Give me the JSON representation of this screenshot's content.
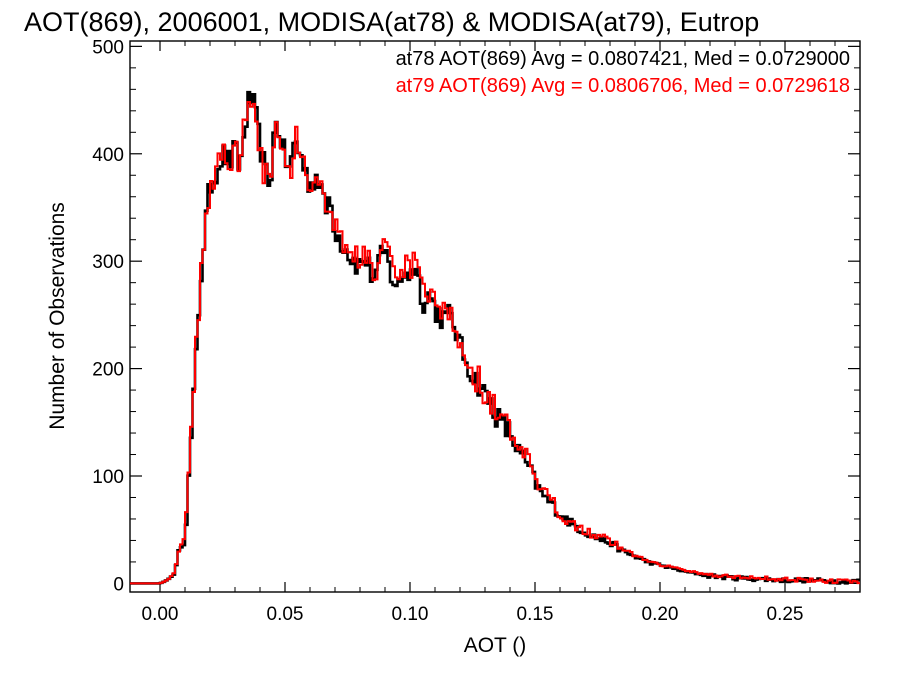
{
  "chart_data": {
    "type": "histogram",
    "title": "AOT(869), 2006001, MODISA(at78) & MODISA(at79), Eutrop",
    "xlabel": "AOT ()",
    "ylabel": "Number of Observations",
    "xlim": [
      -0.012,
      0.28
    ],
    "ylim": [
      -8,
      505
    ],
    "xticks": [
      0.0,
      0.05,
      0.1,
      0.15,
      0.2,
      0.25
    ],
    "xtick_labels": [
      "0.00",
      "0.05",
      "0.10",
      "0.15",
      "0.20",
      "0.25"
    ],
    "yticks": [
      0,
      100,
      200,
      300,
      400,
      500
    ],
    "ytick_labels": [
      "0",
      "100",
      "200",
      "300",
      "400",
      "500"
    ],
    "bin_width": 0.001,
    "grid": false,
    "legend_position": "top-right",
    "series": [
      {
        "name": "at78",
        "color": "#000000",
        "legend_text": "at78 AOT(869) Avg = 0.0807421, Med = 0.0729000",
        "x": [
          -0.005,
          0.0,
          0.002,
          0.004,
          0.006,
          0.008,
          0.01,
          0.012,
          0.014,
          0.016,
          0.018,
          0.02,
          0.022,
          0.024,
          0.026,
          0.028,
          0.03,
          0.032,
          0.034,
          0.036,
          0.038,
          0.04,
          0.042,
          0.044,
          0.046,
          0.048,
          0.05,
          0.052,
          0.054,
          0.056,
          0.058,
          0.06,
          0.062,
          0.064,
          0.066,
          0.068,
          0.07,
          0.072,
          0.074,
          0.076,
          0.078,
          0.08,
          0.082,
          0.084,
          0.086,
          0.088,
          0.09,
          0.092,
          0.094,
          0.096,
          0.098,
          0.1,
          0.102,
          0.104,
          0.106,
          0.108,
          0.11,
          0.112,
          0.114,
          0.116,
          0.118,
          0.12,
          0.122,
          0.124,
          0.126,
          0.128,
          0.13,
          0.132,
          0.134,
          0.136,
          0.138,
          0.14,
          0.142,
          0.144,
          0.146,
          0.148,
          0.15,
          0.152,
          0.154,
          0.156,
          0.158,
          0.16,
          0.165,
          0.17,
          0.175,
          0.18,
          0.185,
          0.19,
          0.195,
          0.2,
          0.205,
          0.21,
          0.215,
          0.22,
          0.225,
          0.23,
          0.24,
          0.25,
          0.26,
          0.27,
          0.278
        ],
        "y": [
          0,
          0,
          2,
          5,
          10,
          35,
          40,
          115,
          190,
          275,
          330,
          370,
          380,
          395,
          400,
          390,
          405,
          385,
          425,
          455,
          440,
          410,
          385,
          370,
          430,
          420,
          395,
          385,
          415,
          400,
          385,
          370,
          380,
          375,
          345,
          360,
          330,
          320,
          315,
          305,
          300,
          295,
          305,
          290,
          285,
          300,
          310,
          290,
          280,
          275,
          295,
          285,
          300,
          275,
          260,
          270,
          255,
          250,
          245,
          250,
          240,
          220,
          210,
          200,
          190,
          185,
          175,
          170,
          160,
          150,
          145,
          140,
          130,
          120,
          115,
          105,
          95,
          85,
          80,
          75,
          70,
          65,
          55,
          48,
          42,
          38,
          30,
          25,
          20,
          17,
          14,
          11,
          9,
          7,
          6,
          5,
          4,
          3,
          3,
          2,
          2
        ],
        "y_note_amplitude": 12
      },
      {
        "name": "at79",
        "color": "#ff0000",
        "legend_text": "at79 AOT(869) Avg = 0.0806706, Med = 0.0729618",
        "x": [
          -0.005,
          0.0,
          0.002,
          0.004,
          0.006,
          0.008,
          0.01,
          0.012,
          0.014,
          0.016,
          0.018,
          0.02,
          0.022,
          0.024,
          0.026,
          0.028,
          0.03,
          0.032,
          0.034,
          0.036,
          0.038,
          0.04,
          0.042,
          0.044,
          0.046,
          0.048,
          0.05,
          0.052,
          0.054,
          0.056,
          0.058,
          0.06,
          0.062,
          0.064,
          0.066,
          0.068,
          0.07,
          0.072,
          0.074,
          0.076,
          0.078,
          0.08,
          0.082,
          0.084,
          0.086,
          0.088,
          0.09,
          0.092,
          0.094,
          0.096,
          0.098,
          0.1,
          0.102,
          0.104,
          0.106,
          0.108,
          0.11,
          0.112,
          0.114,
          0.116,
          0.118,
          0.12,
          0.122,
          0.124,
          0.126,
          0.128,
          0.13,
          0.132,
          0.134,
          0.136,
          0.138,
          0.14,
          0.142,
          0.144,
          0.146,
          0.148,
          0.15,
          0.152,
          0.154,
          0.156,
          0.158,
          0.16,
          0.165,
          0.17,
          0.175,
          0.18,
          0.185,
          0.19,
          0.195,
          0.2,
          0.205,
          0.21,
          0.215,
          0.22,
          0.225,
          0.23,
          0.24,
          0.25,
          0.26,
          0.27,
          0.278
        ],
        "y": [
          0,
          0,
          2,
          5,
          12,
          38,
          42,
          118,
          195,
          280,
          335,
          365,
          385,
          392,
          405,
          385,
          410,
          388,
          430,
          462,
          445,
          405,
          380,
          378,
          432,
          418,
          398,
          380,
          418,
          405,
          390,
          372,
          378,
          370,
          350,
          362,
          335,
          322,
          318,
          308,
          305,
          298,
          310,
          295,
          290,
          305,
          315,
          295,
          285,
          278,
          298,
          290,
          305,
          278,
          262,
          272,
          258,
          252,
          248,
          252,
          242,
          222,
          212,
          202,
          192,
          188,
          178,
          172,
          162,
          152,
          148,
          142,
          132,
          122,
          118,
          108,
          98,
          88,
          82,
          76,
          72,
          66,
          56,
          50,
          44,
          40,
          32,
          26,
          22,
          18,
          15,
          12,
          10,
          8,
          7,
          6,
          5,
          4,
          3,
          2,
          2
        ],
        "y_note_amplitude": 14
      }
    ]
  }
}
